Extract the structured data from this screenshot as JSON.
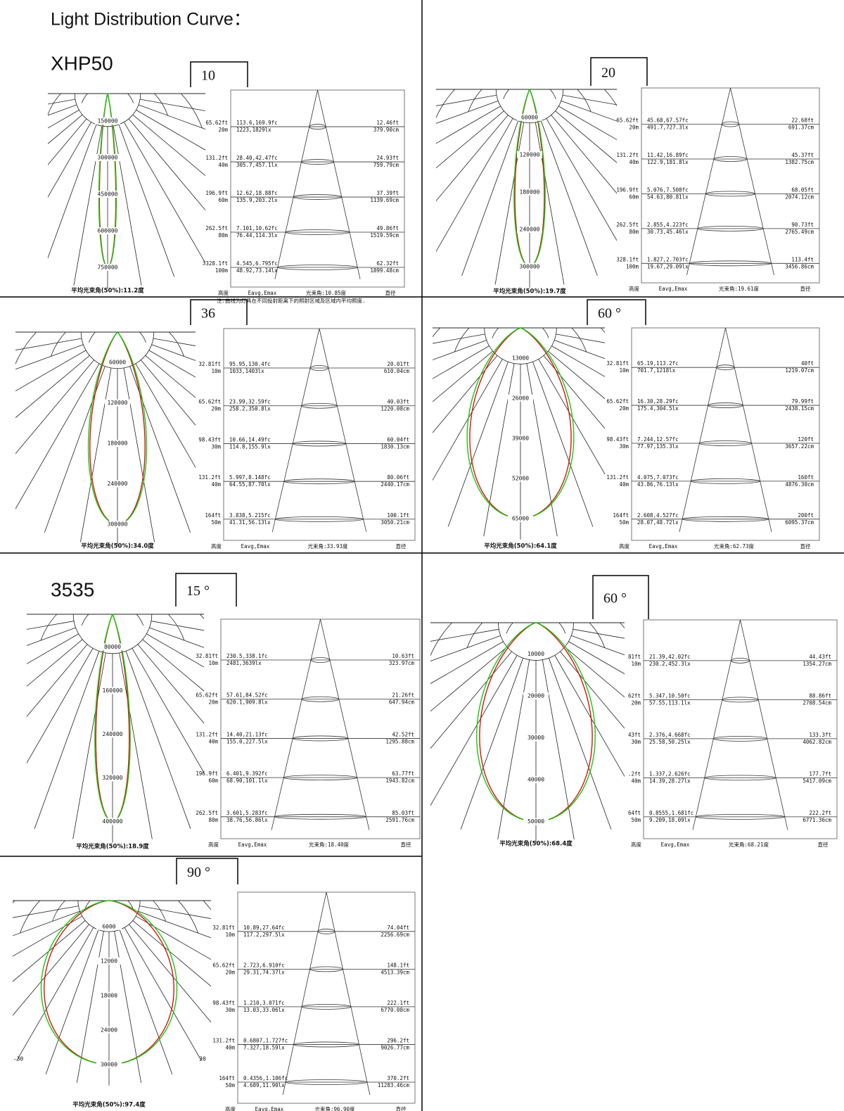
{
  "header": {
    "title": "Light Distribution Curve：",
    "sections": [
      "XHP50",
      "3535"
    ]
  },
  "panels": [
    {
      "tag": "10",
      "rings": [
        150000,
        300000,
        450000,
        600000,
        750000
      ],
      "caption": "平均光束角(50%):11.2度",
      "rows": [
        [
          "65.62ft",
          "20m",
          "113.6,169.9fc",
          "1223,1829lx",
          "12.46ft",
          "379.90cm"
        ],
        [
          "131.2ft",
          "40m",
          "28.40,42.47fc",
          "305.7,457.1lx",
          "24.93ft",
          "759.79cm"
        ],
        [
          "196.9ft",
          "60m",
          "12.62,18.88fc",
          "135.9,203.2lx",
          "37.39ft",
          "1139.69cm"
        ],
        [
          "262.5ft",
          "80m",
          "7.101,10.62fc",
          "76.44,114.3lx",
          "49.86ft",
          "1519.59cm"
        ],
        [
          "328.1ft",
          "100m",
          "4.545,6.795fc",
          "48.92,73.14lx",
          "62.32ft",
          "1899.48cm"
        ]
      ],
      "footer": [
        "高度",
        "Eavg,Emax",
        "光束角:10.85度",
        "直径"
      ],
      "note": "注:曲线为灯具在不同投射距离下的照射区域及区域内平均照度.",
      "marks": [
        3
      ]
    },
    {
      "tag": "20",
      "rings": [
        60000,
        120000,
        180000,
        240000,
        300000
      ],
      "caption": "平均光束角(50%):19.7度",
      "rows": [
        [
          "65.62ft",
          "20m",
          "45.68,67.57fc",
          "491.7,727.3lx",
          "22.68ft",
          "691.37cm"
        ],
        [
          "131.2ft",
          "40m",
          "11.42,16.89fc",
          "122.9,181.8lx",
          "45.37ft",
          "1382.75cm"
        ],
        [
          "196.9ft",
          "60m",
          "5.076,7.508fc",
          "54.63,80.81lx",
          "68.05ft",
          "2074.12cm"
        ],
        [
          "262.5ft",
          "80m",
          "2.855,4.223fc",
          "30.73,45.46lx",
          "90.73ft",
          "2765.49cm"
        ],
        [
          "328.1ft",
          "100m",
          "1.827,2.703fc",
          "19.67,29.09lx",
          "113.4ft",
          "3456.86cm"
        ]
      ],
      "footer": [
        "高度",
        "Eavg,Emax",
        "光束角:19.61度",
        "直径"
      ]
    },
    {
      "tag": "36",
      "rings": [
        60000,
        120000,
        180000,
        240000,
        300000
      ],
      "caption": "平均光束角(50%):34.0度",
      "rows": [
        [
          "32.81ft",
          "10m",
          "95.95,130.4fc",
          "1033,1403lx",
          "20.01ft",
          "610.04cm"
        ],
        [
          "65.62ft",
          "20m",
          "23.99,32.59fc",
          "258.2,350.8lx",
          "40.03ft",
          "1220.08cm"
        ],
        [
          "98.43ft",
          "30m",
          "10.66,14.49fc",
          "114.8,155.9lx",
          "60.04ft",
          "1830.13cm"
        ],
        [
          "131.2ft",
          "40m",
          "5.997,8.148fc",
          "64.55,87.70lx",
          "80.06ft",
          "2440.17cm"
        ],
        [
          "164ft",
          "50m",
          "3.838,5.215fc",
          "41.31,56.13lx",
          "100.1ft",
          "3050.21cm"
        ]
      ],
      "footer": [
        "高度",
        "Eavg,Emax",
        "光束角:33.93度",
        "直径"
      ]
    },
    {
      "tag": "60 °",
      "rings": [
        13000,
        26000,
        39000,
        52000,
        65000
      ],
      "caption": "平均光束角(50%):64.1度",
      "rows": [
        [
          "32.81ft",
          "10m",
          "65.19,113.2fc",
          "701.7,1218lx",
          "40ft",
          "1219.07cm"
        ],
        [
          "65.62ft",
          "20m",
          "16.30,28.29fc",
          "175.4,304.5lx",
          "79.99ft",
          "2438.15cm"
        ],
        [
          "98.43ft",
          "30m",
          "7.244,12.57fc",
          "77.97,135.3lx",
          "120ft",
          "3657.22cm"
        ],
        [
          "131.2ft",
          "40m",
          "4.075,7.073fc",
          "43.86,76.13lx",
          "160ft",
          "4876.30cm"
        ],
        [
          "164ft",
          "50m",
          "2.608,4.527fc",
          "28.07,48.72lx",
          "200ft",
          "6095.37cm"
        ]
      ],
      "footer": [
        "高度",
        "Eavg,Emax",
        "光束角:62.73度",
        "直径"
      ]
    },
    {
      "tag": "15 °",
      "rings": [
        80000,
        160000,
        240000,
        320000,
        400000
      ],
      "caption": "平均光束角(50%):18.9度",
      "rows": [
        [
          "32.81ft",
          "10m",
          "230.5,338.1fc",
          "2481,3639lx",
          "10.63ft",
          "323.97cm"
        ],
        [
          "65.62ft",
          "20m",
          "57.61,84.52fc",
          "620.1,909.8lx",
          "21.26ft",
          "647.94cm"
        ],
        [
          "131.2ft",
          "40m",
          "14.40,21.13fc",
          "155.0,227.5lx",
          "42.52ft",
          "1295.88cm"
        ],
        [
          "196.9ft",
          "60m",
          "6.401,9.392fc",
          "68.90,101.1lx",
          "63.77ft",
          "1943.82cm"
        ],
        [
          "262.5ft",
          "80m",
          "3.601,5.283fc",
          "38.76,56.86lx",
          "85.03ft",
          "2591.76cm"
        ]
      ],
      "footer": [
        "高度",
        "Eavg,Emax",
        "光束角:18.40度",
        "直径"
      ]
    },
    {
      "tag": "60 °",
      "rings": [
        10000,
        20000,
        30000,
        40000,
        50000
      ],
      "caption": "平均光束角(50%):68.4度",
      "rows": [
        [
          "81ft",
          "10m",
          "21.39,42.02fc",
          "230.2,452.3lx",
          "44.43ft",
          "1354.27cm"
        ],
        [
          "62ft",
          "20m",
          "5.347,10.50fc",
          "57.55,113.1lx",
          "88.86ft",
          "2708.54cm"
        ],
        [
          "43ft",
          "30m",
          "2.376,4.668fc",
          "25.58,50.25lx",
          "133.3ft",
          "4062.82cm"
        ],
        [
          ".2ft",
          "40m",
          "1.337,2.626fc",
          "14.39,28.27lx",
          "177.7ft",
          "5417.09cm"
        ],
        [
          "64ft",
          "50m",
          "0.8555,1.681fc",
          "9.209,18.09lx",
          "222.2ft",
          "6771.36cm"
        ]
      ],
      "footer": [
        "高度",
        "Eavg,Emax",
        "光束角:68.21度",
        "直径"
      ]
    },
    {
      "tag": "90 °",
      "rings": [
        6000,
        12000,
        18000,
        24000,
        30000
      ],
      "caption": "平均光束角(50%):97.4度",
      "rows": [
        [
          "32.81ft",
          "10m",
          "10.89,27.64fc",
          "117.2,297.5lx",
          "74.04ft",
          "2256.69cm"
        ],
        [
          "65.62ft",
          "20m",
          "2.723,6.910fc",
          "29.31,74.37lx",
          "148.1ft",
          "4513.39cm"
        ],
        [
          "98.43ft",
          "30m",
          "1.210,3.071fc",
          "13.03,33.06lx",
          "222.1ft",
          "6770.08cm"
        ],
        [
          "131.2ft",
          "40m",
          "0.6807,1.727fc",
          "7.327,18.59lx",
          "296.2ft",
          "9026.77cm"
        ],
        [
          "164ft",
          "50m",
          "0.4356,1.106fc",
          "4.689,11.90lx",
          "370.2ft",
          "11283.46cm"
        ]
      ],
      "footer": [
        "高度",
        "Eavg,Emax",
        "光束角:96.90度",
        "直径"
      ],
      "marks": [
        -30,
        30
      ]
    }
  ]
}
